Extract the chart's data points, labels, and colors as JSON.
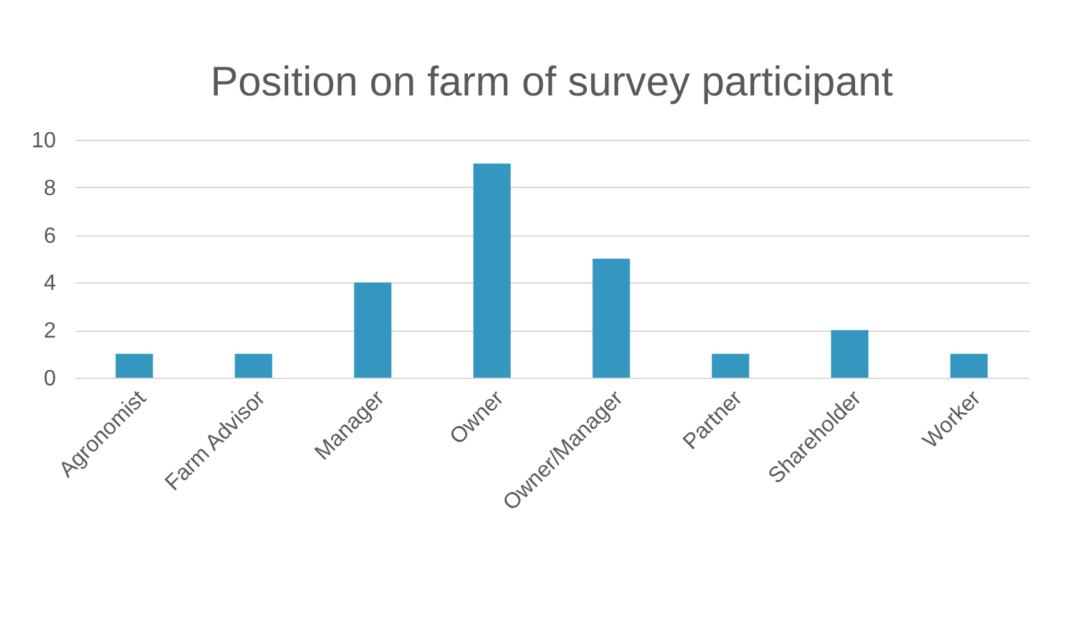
{
  "chart_data": {
    "type": "bar",
    "title": "Position on farm of survey participant",
    "categories": [
      "Agronomist",
      "Farm Advisor",
      "Manager",
      "Owner",
      "Owner/Manager",
      "Partner",
      "Shareholder",
      "Worker"
    ],
    "values": [
      1,
      1,
      4,
      9,
      5,
      1,
      2,
      1
    ],
    "color": "#3497bf",
    "ylim": [
      0,
      10
    ],
    "yticks": [
      0,
      2,
      4,
      6,
      8,
      10
    ],
    "grid": "y"
  }
}
